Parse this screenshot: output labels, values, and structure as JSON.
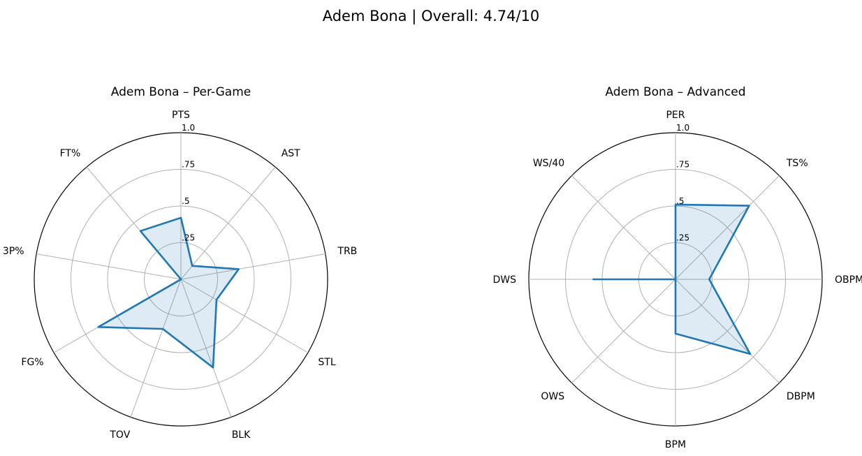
{
  "suptitle": "Adem Bona | Overall: 4.74/10",
  "chart_data": [
    {
      "type": "radar",
      "title": "Adem Bona – Per-Game",
      "categories": [
        "PTS",
        "AST",
        "TRB",
        "STL",
        "BLK",
        "TOV",
        "FG%",
        "3P%",
        "FT%"
      ],
      "values": [
        0.42,
        0.12,
        0.4,
        0.28,
        0.64,
        0.36,
        0.65,
        0.0,
        0.43
      ],
      "rlim": [
        0,
        1.0
      ],
      "rticks": [
        0.25,
        0.5,
        0.75,
        1.0
      ],
      "rtick_labels": [
        ".25",
        ".5",
        ".75",
        "1.0"
      ],
      "grid": true,
      "color": "#1f77b4",
      "fill_color": "#1f77b4"
    },
    {
      "type": "radar",
      "title": "Adem Bona – Advanced",
      "categories": [
        "PER",
        "TS%",
        "OBPM",
        "DBPM",
        "BPM",
        "OWS",
        "DWS",
        "WS/40"
      ],
      "values": [
        0.51,
        0.71,
        0.23,
        0.72,
        0.37,
        0.0,
        0.56,
        0.0
      ],
      "rlim": [
        0,
        1.0
      ],
      "rticks": [
        0.25,
        0.5,
        0.75,
        1.0
      ],
      "rtick_labels": [
        ".25",
        ".5",
        ".75",
        "1.0"
      ],
      "grid": true,
      "color": "#1f77b4",
      "fill_color": "#1f77b4"
    }
  ]
}
